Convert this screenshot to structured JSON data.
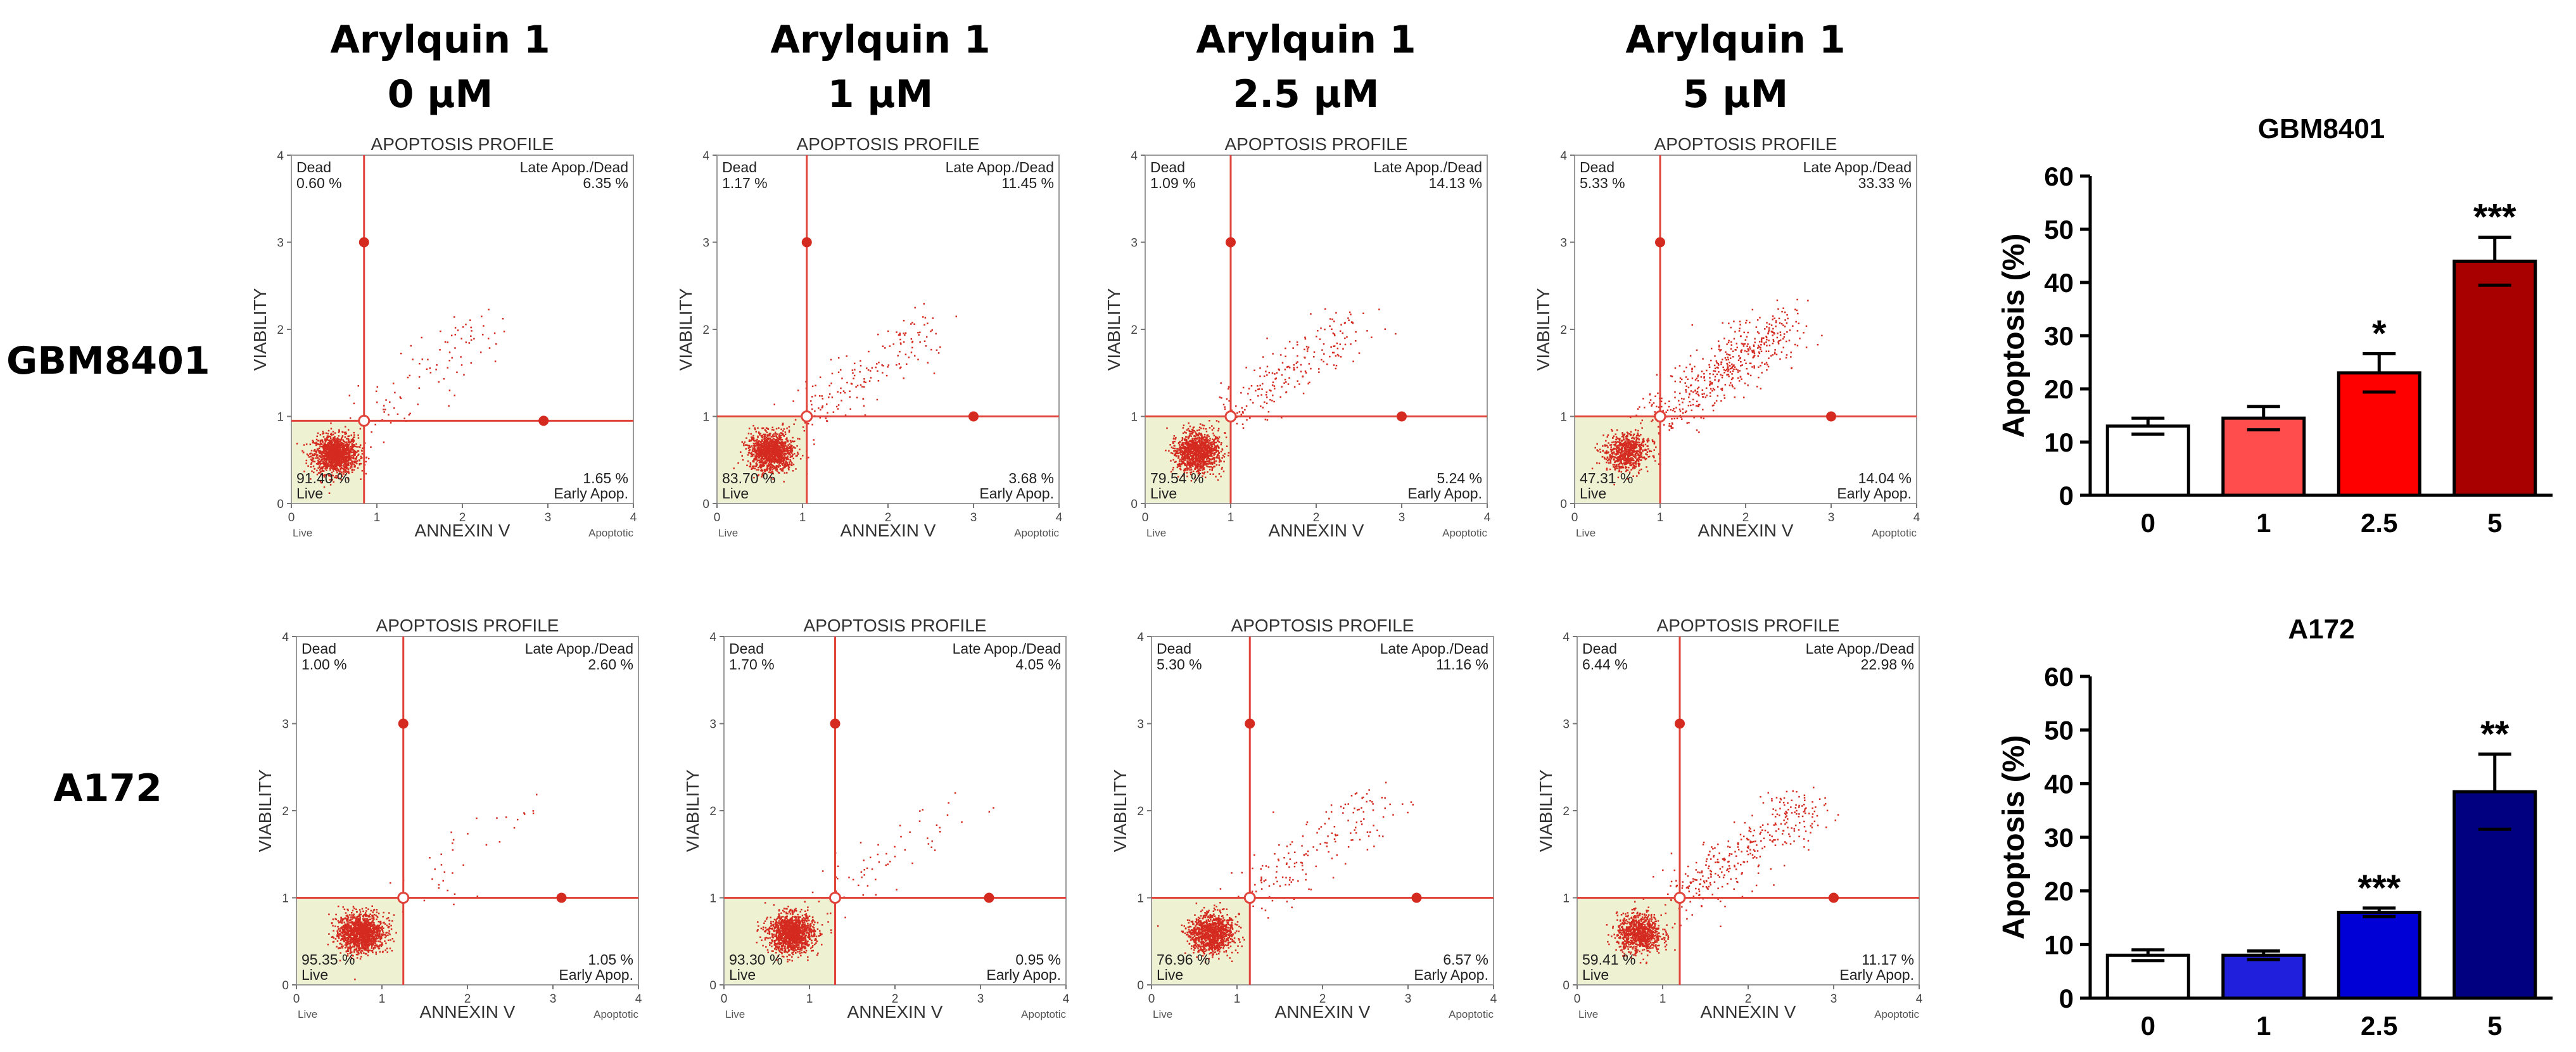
{
  "column_headers": [
    {
      "line1": "Arylquin 1",
      "line2": "0 µM"
    },
    {
      "line1": "Arylquin 1",
      "line2": "1 µM"
    },
    {
      "line1": "Arylquin 1",
      "line2": "2.5 µM"
    },
    {
      "line1": "Arylquin 1",
      "line2": "5 µM"
    }
  ],
  "row_labels": [
    "GBM8401",
    "A172"
  ],
  "colors": {
    "quadrant_line": "#e0443a",
    "dot": "#d42a20",
    "live_fill": "#eef1d2",
    "bar_gbm": [
      "#ffffff",
      "#ff4d4d",
      "#ff0000",
      "#a80000"
    ],
    "bar_a172": [
      "#ffffff",
      "#1f1fdc",
      "#0000d6",
      "#000080"
    ]
  },
  "chart_data": [
    {
      "type": "scatter",
      "title": "APOPTOSIS PROFILE",
      "row": "GBM8401",
      "concentration": "0 µM",
      "xlabel": "ANNEXIN V",
      "ylabel": "VIABILITY",
      "x_ticks": [
        "0",
        "1",
        "2",
        "3",
        "4"
      ],
      "y_ticks": [
        "0",
        "1",
        "2",
        "3",
        "4"
      ],
      "xlim": [
        0,
        4
      ],
      "ylim": [
        0,
        4
      ],
      "x_end_labels": [
        "Live",
        "Apoptotic"
      ],
      "gate": [
        0.85,
        0.95
      ],
      "markers": [
        [
          0.85,
          3.0
        ],
        [
          2.95,
          0.95
        ]
      ],
      "quadrants": {
        "dead": {
          "label": "Dead",
          "value": "0.60 %"
        },
        "late": {
          "label": "Late Apop./Dead",
          "value": "6.35 %"
        },
        "live": {
          "label": "Live",
          "value": "91.40 %"
        },
        "early": {
          "label": "Early Apop.",
          "value": "1.65 %"
        }
      }
    },
    {
      "type": "scatter",
      "title": "APOPTOSIS PROFILE",
      "row": "GBM8401",
      "concentration": "1 µM",
      "xlabel": "ANNEXIN V",
      "ylabel": "VIABILITY",
      "x_ticks": [
        "0",
        "1",
        "2",
        "3",
        "4"
      ],
      "y_ticks": [
        "0",
        "1",
        "2",
        "3",
        "4"
      ],
      "xlim": [
        0,
        4
      ],
      "ylim": [
        0,
        4
      ],
      "x_end_labels": [
        "Live",
        "Apoptotic"
      ],
      "gate": [
        1.05,
        1.0
      ],
      "markers": [
        [
          1.05,
          3.0
        ],
        [
          3.0,
          1.0
        ]
      ],
      "quadrants": {
        "dead": {
          "label": "Dead",
          "value": "1.17 %"
        },
        "late": {
          "label": "Late Apop./Dead",
          "value": "11.45 %"
        },
        "live": {
          "label": "Live",
          "value": "83.70 %"
        },
        "early": {
          "label": "Early Apop.",
          "value": "3.68 %"
        }
      }
    },
    {
      "type": "scatter",
      "title": "APOPTOSIS PROFILE",
      "row": "GBM8401",
      "concentration": "2.5 µM",
      "xlabel": "ANNEXIN V",
      "ylabel": "VIABILITY",
      "x_ticks": [
        "0",
        "1",
        "2",
        "3",
        "4"
      ],
      "y_ticks": [
        "0",
        "1",
        "2",
        "3",
        "4"
      ],
      "xlim": [
        0,
        4
      ],
      "ylim": [
        0,
        4
      ],
      "x_end_labels": [
        "Live",
        "Apoptotic"
      ],
      "gate": [
        1.0,
        1.0
      ],
      "markers": [
        [
          1.0,
          3.0
        ],
        [
          3.0,
          1.0
        ]
      ],
      "quadrants": {
        "dead": {
          "label": "Dead",
          "value": "1.09 %"
        },
        "late": {
          "label": "Late Apop./Dead",
          "value": "14.13 %"
        },
        "live": {
          "label": "Live",
          "value": "79.54 %"
        },
        "early": {
          "label": "Early Apop.",
          "value": "5.24 %"
        }
      }
    },
    {
      "type": "scatter",
      "title": "APOPTOSIS PROFILE",
      "row": "GBM8401",
      "concentration": "5 µM",
      "xlabel": "ANNEXIN V",
      "ylabel": "VIABILITY",
      "x_ticks": [
        "0",
        "1",
        "2",
        "3",
        "4"
      ],
      "y_ticks": [
        "0",
        "1",
        "2",
        "3",
        "4"
      ],
      "xlim": [
        0,
        4
      ],
      "ylim": [
        0,
        4
      ],
      "x_end_labels": [
        "Live",
        "Apoptotic"
      ],
      "gate": [
        1.0,
        1.0
      ],
      "markers": [
        [
          1.0,
          3.0
        ],
        [
          3.0,
          1.0
        ]
      ],
      "quadrants": {
        "dead": {
          "label": "Dead",
          "value": "5.33 %"
        },
        "late": {
          "label": "Late Apop./Dead",
          "value": "33.33 %"
        },
        "live": {
          "label": "Live",
          "value": "47.31 %"
        },
        "early": {
          "label": "Early Apop.",
          "value": "14.04 %"
        }
      }
    },
    {
      "type": "scatter",
      "title": "APOPTOSIS PROFILE",
      "row": "A172",
      "concentration": "0 µM",
      "xlabel": "ANNEXIN V",
      "ylabel": "VIABILITY",
      "x_ticks": [
        "0",
        "1",
        "2",
        "3",
        "4"
      ],
      "y_ticks": [
        "0",
        "1",
        "2",
        "3",
        "4"
      ],
      "xlim": [
        0,
        4
      ],
      "ylim": [
        0,
        4
      ],
      "x_end_labels": [
        "Live",
        "Apoptotic"
      ],
      "gate": [
        1.25,
        1.0
      ],
      "markers": [
        [
          1.25,
          3.0
        ],
        [
          3.1,
          1.0
        ]
      ],
      "quadrants": {
        "dead": {
          "label": "Dead",
          "value": "1.00 %"
        },
        "late": {
          "label": "Late Apop./Dead",
          "value": "2.60 %"
        },
        "live": {
          "label": "Live",
          "value": "95.35 %"
        },
        "early": {
          "label": "Early Apop.",
          "value": "1.05 %"
        }
      }
    },
    {
      "type": "scatter",
      "title": "APOPTOSIS PROFILE",
      "row": "A172",
      "concentration": "1 µM",
      "xlabel": "ANNEXIN V",
      "ylabel": "VIABILITY",
      "x_ticks": [
        "0",
        "1",
        "2",
        "3",
        "4"
      ],
      "y_ticks": [
        "0",
        "1",
        "2",
        "3",
        "4"
      ],
      "xlim": [
        0,
        4
      ],
      "ylim": [
        0,
        4
      ],
      "x_end_labels": [
        "Live",
        "Apoptotic"
      ],
      "gate": [
        1.3,
        1.0
      ],
      "markers": [
        [
          1.3,
          3.0
        ],
        [
          3.1,
          1.0
        ]
      ],
      "quadrants": {
        "dead": {
          "label": "Dead",
          "value": "1.70 %"
        },
        "late": {
          "label": "Late Apop./Dead",
          "value": "4.05 %"
        },
        "live": {
          "label": "Live",
          "value": "93.30 %"
        },
        "early": {
          "label": "Early Apop.",
          "value": "0.95 %"
        }
      }
    },
    {
      "type": "scatter",
      "title": "APOPTOSIS PROFILE",
      "row": "A172",
      "concentration": "2.5 µM",
      "xlabel": "ANNEXIN V",
      "ylabel": "VIABILITY",
      "x_ticks": [
        "0",
        "1",
        "2",
        "3",
        "4"
      ],
      "y_ticks": [
        "0",
        "1",
        "2",
        "3",
        "4"
      ],
      "xlim": [
        0,
        4
      ],
      "ylim": [
        0,
        4
      ],
      "x_end_labels": [
        "Live",
        "Apoptotic"
      ],
      "gate": [
        1.15,
        1.0
      ],
      "markers": [
        [
          1.15,
          3.0
        ],
        [
          3.1,
          1.0
        ]
      ],
      "quadrants": {
        "dead": {
          "label": "Dead",
          "value": "5.30 %"
        },
        "late": {
          "label": "Late Apop./Dead",
          "value": "11.16 %"
        },
        "live": {
          "label": "Live",
          "value": "76.96 %"
        },
        "early": {
          "label": "Early Apop.",
          "value": "6.57 %"
        }
      }
    },
    {
      "type": "scatter",
      "title": "APOPTOSIS PROFILE",
      "row": "A172",
      "concentration": "5 µM",
      "xlabel": "ANNEXIN V",
      "ylabel": "VIABILITY",
      "x_ticks": [
        "0",
        "1",
        "2",
        "3",
        "4"
      ],
      "y_ticks": [
        "0",
        "1",
        "2",
        "3",
        "4"
      ],
      "xlim": [
        0,
        4
      ],
      "ylim": [
        0,
        4
      ],
      "x_end_labels": [
        "Live",
        "Apoptotic"
      ],
      "gate": [
        1.2,
        1.0
      ],
      "markers": [
        [
          1.2,
          3.0
        ],
        [
          3.0,
          1.0
        ]
      ],
      "quadrants": {
        "dead": {
          "label": "Dead",
          "value": "6.44 %"
        },
        "late": {
          "label": "Late Apop./Dead",
          "value": "22.98 %"
        },
        "live": {
          "label": "Live",
          "value": "59.41 %"
        },
        "early": {
          "label": "Early Apop.",
          "value": "11.17 %"
        }
      }
    },
    {
      "type": "bar",
      "title": "GBM8401",
      "ylabel": "Apoptosis (%)",
      "xlabel": "",
      "categories": [
        "0",
        "1",
        "2.5",
        "5"
      ],
      "values": [
        13,
        14.5,
        23,
        44
      ],
      "errors": [
        1.5,
        2.2,
        3.6,
        4.5
      ],
      "significance": [
        "",
        "",
        "*",
        "***"
      ],
      "ylim": [
        0,
        60
      ],
      "y_ticks": [
        "0",
        "10",
        "20",
        "30",
        "40",
        "50",
        "60"
      ]
    },
    {
      "type": "bar",
      "title": "A172",
      "ylabel": "Apoptosis (%)",
      "xlabel": "",
      "categories": [
        "0",
        "1",
        "2.5",
        "5"
      ],
      "values": [
        8,
        8,
        16,
        38.5
      ],
      "errors": [
        1.0,
        0.8,
        0.8,
        7.0
      ],
      "significance": [
        "",
        "",
        "***",
        "**"
      ],
      "ylim": [
        0,
        60
      ],
      "y_ticks": [
        "0",
        "10",
        "20",
        "30",
        "40",
        "50",
        "60"
      ]
    }
  ]
}
